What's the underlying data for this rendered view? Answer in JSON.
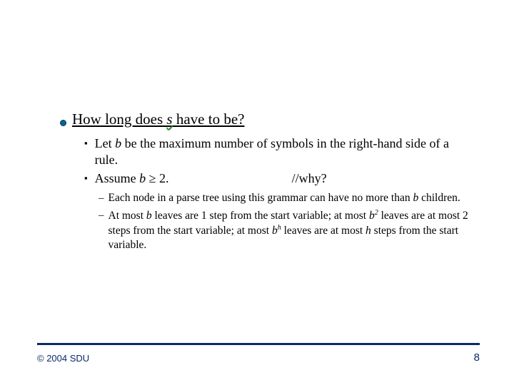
{
  "heading": {
    "prefix": "How long does ",
    "var": "s",
    "suffix": " have to be?"
  },
  "sub": {
    "item1_a": "Let ",
    "item1_b": "b",
    "item1_c": " be the maximum number of symbols in the right-hand side of a rule.",
    "item2_a": "Assume ",
    "item2_b": "b",
    "item2_c": " ≥ 2.",
    "item2_comment": "//why?"
  },
  "subsub": {
    "d1_a": "Each node in a parse tree using this grammar can have no more than ",
    "d1_b": "b",
    "d1_c": " children.",
    "d2_a": "At most ",
    "d2_b": "b",
    "d2_c": " leaves are 1 step from the start variable; at most ",
    "d2_d": "b",
    "d2_e": "2",
    "d2_f": " leaves are at most 2 steps from the start variable; at most ",
    "d2_g": "b",
    "d2_h": "h",
    "d2_i": " leaves are at most ",
    "d2_j": "h",
    "d2_k": " steps from the start variable."
  },
  "footer": {
    "copyright": "© 2004 SDU",
    "page": "8"
  },
  "colors": {
    "bullet": "#006699",
    "rule": "#0a2a66",
    "text": "#000000"
  }
}
